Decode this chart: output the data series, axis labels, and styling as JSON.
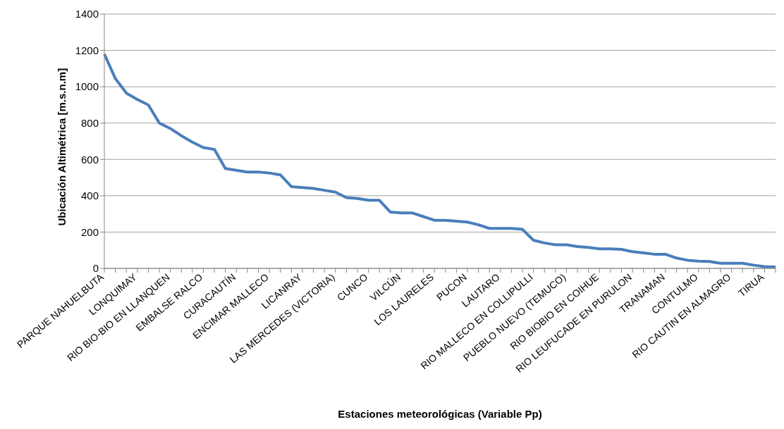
{
  "chart_data": {
    "type": "line",
    "xlabel": "Estaciones meteorológicas (Variable Pp)",
    "ylabel": "Ubicación Altimétrica [m.s.n.m]",
    "categories": [
      "PARQUE NAHUELBUTA",
      null,
      null,
      "LONQUIMAY",
      null,
      null,
      "RIO BIO-BIO EN LLANQUEN",
      null,
      null,
      "EMBALSE RALCO",
      null,
      null,
      "CURACAUTÍN",
      null,
      null,
      "ENCIMAR MALLECO",
      null,
      null,
      "LICANRAY",
      null,
      null,
      "LAS MERCEDES (VICTORIA)",
      null,
      null,
      "CUNCO",
      null,
      null,
      "VILCÚN",
      null,
      null,
      "LOS LAURELES",
      null,
      null,
      "PUCON",
      null,
      null,
      "LAUTARO",
      null,
      null,
      "RIO MALLECO EN COLLIPULLI",
      null,
      null,
      "PUEBLO NUEVO (TEMUCO)",
      null,
      null,
      "RIO BIOBIO EN COIHUE",
      null,
      null,
      "RIO LEUFUCADE EN PURULON",
      null,
      null,
      "TRANAMAN",
      null,
      null,
      "CONTULMO",
      null,
      null,
      "RIO CAUTIN EN ALMAGRO",
      null,
      null,
      "TIRUA",
      null
    ],
    "series": [
      {
        "color": "#4a7ebb",
        "values": [
          1180,
          1045,
          965,
          930,
          900,
          800,
          770,
          730,
          695,
          665,
          655,
          550,
          540,
          530,
          530,
          525,
          515,
          450,
          445,
          440,
          430,
          420,
          390,
          385,
          375,
          375,
          310,
          305,
          305,
          285,
          265,
          265,
          260,
          255,
          240,
          220,
          220,
          220,
          215,
          155,
          140,
          130,
          130,
          120,
          115,
          108,
          108,
          105,
          92,
          85,
          78,
          78,
          57,
          45,
          40,
          38,
          28,
          28,
          28,
          18,
          10,
          8
        ]
      }
    ],
    "ylim": [
      0,
      1400
    ],
    "yticks": [
      0,
      200,
      400,
      600,
      800,
      1000,
      1200,
      1400
    ],
    "grid": "y",
    "legend": false,
    "marker": "none",
    "line_style": "solid"
  }
}
